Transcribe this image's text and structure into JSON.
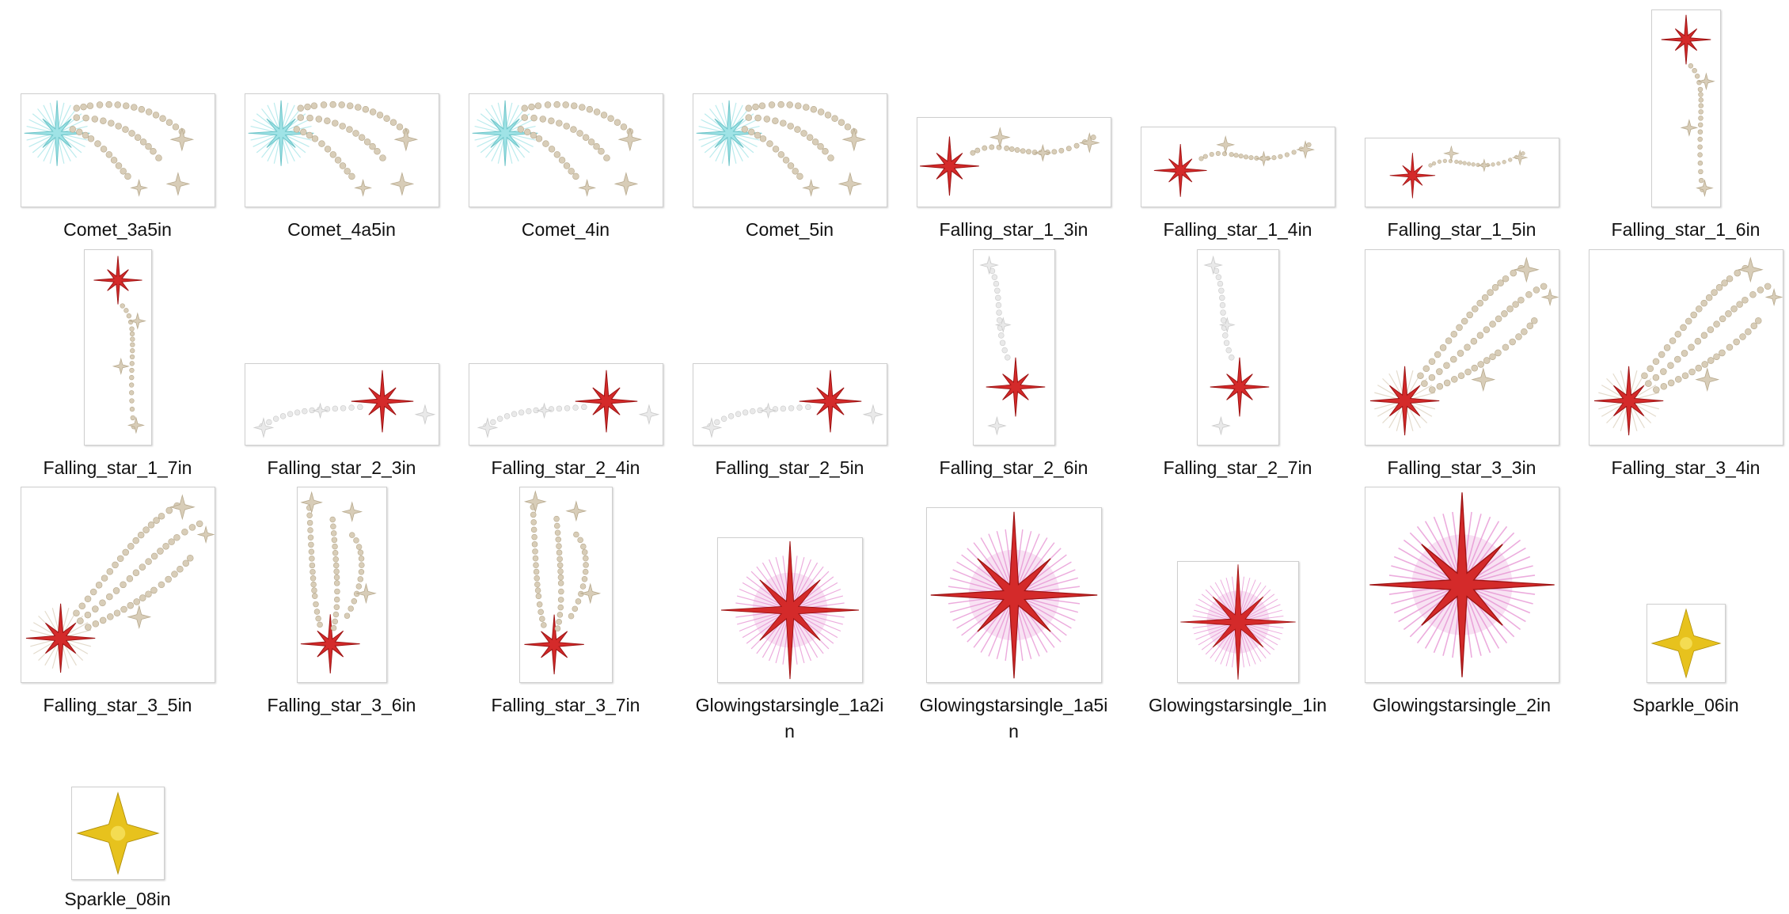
{
  "window": {
    "view": "file-thumbnail-grid"
  },
  "colors": {
    "red_star": "#d42a2a",
    "red_star_dark": "#9e1414",
    "cyan_star": "#9fe3e6",
    "beige_bead": "#d8cdb8",
    "beige_bead_dark": "#b7a98d",
    "white_bead": "#e9e9e9",
    "pink_glow": "#e58ad0",
    "gold_sparkle": "#e7c21d"
  },
  "files": [
    {
      "name": "Comet_3a5in",
      "design": "comet"
    },
    {
      "name": "Comet_4a5in",
      "design": "comet"
    },
    {
      "name": "Comet_4in",
      "design": "comet"
    },
    {
      "name": "Comet_5in",
      "design": "comet"
    },
    {
      "name": "Falling_star_1_3in",
      "design": "falling-star-1-horizontal"
    },
    {
      "name": "Falling_star_1_4in",
      "design": "falling-star-1-horizontal"
    },
    {
      "name": "Falling_star_1_5in",
      "design": "falling-star-1-horizontal"
    },
    {
      "name": "Falling_star_1_6in",
      "design": "falling-star-1-vertical"
    },
    {
      "name": "Falling_star_1_7in",
      "design": "falling-star-1-vertical"
    },
    {
      "name": "Falling_star_2_3in",
      "design": "falling-star-2-horizontal"
    },
    {
      "name": "Falling_star_2_4in",
      "design": "falling-star-2-horizontal"
    },
    {
      "name": "Falling_star_2_5in",
      "design": "falling-star-2-horizontal"
    },
    {
      "name": "Falling_star_2_6in",
      "design": "falling-star-2-vertical"
    },
    {
      "name": "Falling_star_2_7in",
      "design": "falling-star-2-vertical"
    },
    {
      "name": "Falling_star_3_3in",
      "design": "falling-star-3-wide"
    },
    {
      "name": "Falling_star_3_4in",
      "design": "falling-star-3-wide"
    },
    {
      "name": "Falling_star_3_5in",
      "design": "falling-star-3-wide"
    },
    {
      "name": "Falling_star_3_6in",
      "design": "falling-star-3-tall"
    },
    {
      "name": "Falling_star_3_7in",
      "design": "falling-star-3-tall"
    },
    {
      "name": "Glowingstarsingle_1a2in",
      "design": "glowing-star"
    },
    {
      "name": "Glowingstarsingle_1a5in",
      "design": "glowing-star"
    },
    {
      "name": "Glowingstarsingle_1in",
      "design": "glowing-star"
    },
    {
      "name": "Glowingstarsingle_2in",
      "design": "glowing-star"
    },
    {
      "name": "Sparkle_06in",
      "design": "sparkle"
    },
    {
      "name": "Sparkle_08in",
      "design": "sparkle"
    }
  ]
}
